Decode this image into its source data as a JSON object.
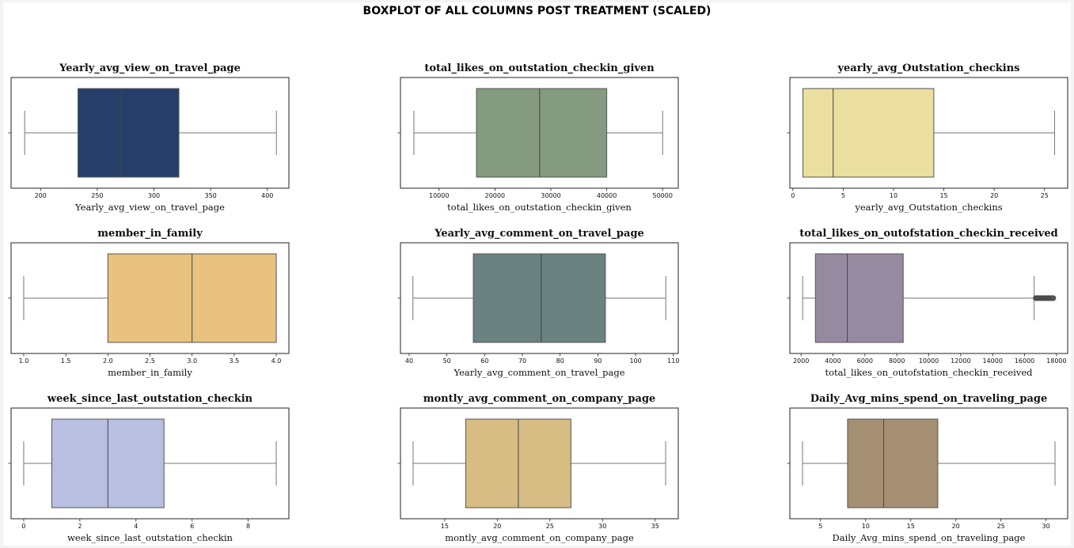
{
  "suptitle": "BOXPLOT OF ALL COLUMNS POST TREATMENT (SCALED)",
  "chart_data": [
    {
      "type": "boxplot",
      "title": "Yearly_avg_view_on_travel_page",
      "xlabel": "Yearly_avg_view_on_travel_page",
      "color": "#253f6a",
      "xlim": [
        174,
        419
      ],
      "ticks": [
        200,
        250,
        300,
        350,
        400
      ],
      "tick_labels": [
        "200",
        "250",
        "300",
        "350",
        "400"
      ],
      "whisker_low": 186,
      "q1": 233,
      "median": 271,
      "q3": 322,
      "whisker_high": 408
    },
    {
      "type": "boxplot",
      "title": "total_likes_on_outstation_checkin_given",
      "xlabel": "total_likes_on_outstation_checkin_given",
      "color": "#859b80",
      "xlim": [
        3100,
        52800
      ],
      "ticks": [
        10000,
        20000,
        30000,
        40000,
        50000
      ],
      "tick_labels": [
        "10000",
        "20000",
        "30000",
        "40000",
        "50000"
      ],
      "whisker_low": 5500,
      "q1": 16700,
      "median": 28000,
      "q3": 40000,
      "whisker_high": 50000
    },
    {
      "type": "boxplot",
      "title": "yearly_avg_Outstation_checkins",
      "xlabel": "yearly_avg_Outstation_checkins",
      "color": "#eadf9f",
      "xlim": [
        -0.3,
        27.3
      ],
      "ticks": [
        0,
        5,
        10,
        15,
        20,
        25
      ],
      "tick_labels": [
        "0",
        "5",
        "10",
        "15",
        "20",
        "25"
      ],
      "whisker_low": 1,
      "q1": 1,
      "median": 4,
      "q3": 14,
      "whisker_high": 26
    },
    {
      "type": "boxplot",
      "title": "member_in_family",
      "xlabel": "member_in_family",
      "color": "#e8c27e",
      "xlim": [
        0.85,
        4.15
      ],
      "ticks": [
        1.0,
        1.5,
        2.0,
        2.5,
        3.0,
        3.5,
        4.0
      ],
      "tick_labels": [
        "1.0",
        "1.5",
        "2.0",
        "2.5",
        "3.0",
        "3.5",
        "4.0"
      ],
      "whisker_low": 1,
      "q1": 2,
      "median": 3,
      "q3": 4,
      "whisker_high": 4
    },
    {
      "type": "boxplot",
      "title": "Yearly_avg_comment_on_travel_page",
      "xlabel": "Yearly_avg_comment_on_travel_page",
      "color": "#6a8280",
      "xlim": [
        37.7,
        111.3
      ],
      "ticks": [
        40,
        50,
        60,
        70,
        80,
        90,
        100,
        110
      ],
      "tick_labels": [
        "40",
        "50",
        "60",
        "70",
        "80",
        "90",
        "100",
        "110"
      ],
      "whisker_low": 41,
      "q1": 57,
      "median": 75,
      "q3": 92,
      "whisker_high": 108
    },
    {
      "type": "boxplot",
      "title": "total_likes_on_outofstation_checkin_received",
      "xlabel": "total_likes_on_outofstation_checkin_received",
      "color": "#968aa0",
      "xlim": [
        1300,
        18700
      ],
      "ticks": [
        2000,
        4000,
        6000,
        8000,
        10000,
        12000,
        14000,
        16000,
        18000
      ],
      "tick_labels": [
        "2000",
        "4000",
        "6000",
        "8000",
        "10000",
        "12000",
        "14000",
        "16000",
        "18000"
      ],
      "whisker_low": 2100,
      "q1": 2900,
      "median": 4900,
      "q3": 8400,
      "whisker_high": 16600,
      "outlier_range": [
        16700,
        17800
      ]
    },
    {
      "type": "boxplot",
      "title": "week_since_last_outstation_checkin",
      "xlabel": "week_since_last_outstation_checkin",
      "color": "#b8bfe0",
      "xlim": [
        -0.45,
        9.45
      ],
      "ticks": [
        0,
        2,
        4,
        6,
        8
      ],
      "tick_labels": [
        "0",
        "2",
        "4",
        "6",
        "8"
      ],
      "whisker_low": 0,
      "q1": 1,
      "median": 3,
      "q3": 5,
      "whisker_high": 9
    },
    {
      "type": "boxplot",
      "title": "montly_avg_comment_on_company_page",
      "xlabel": "montly_avg_comment_on_company_page",
      "color": "#d7bd84",
      "xlim": [
        10.8,
        37.2
      ],
      "ticks": [
        15,
        20,
        25,
        30,
        35
      ],
      "tick_labels": [
        "15",
        "20",
        "25",
        "30",
        "35"
      ],
      "whisker_low": 12,
      "q1": 17,
      "median": 22,
      "q3": 27,
      "whisker_high": 36
    },
    {
      "type": "boxplot",
      "title": "Daily_Avg_mins_spend_on_traveling_page",
      "xlabel": "Daily_Avg_mins_spend_on_traveling_page",
      "color": "#a58f73",
      "xlim": [
        1.6,
        32.4
      ],
      "ticks": [
        5,
        10,
        15,
        20,
        25,
        30
      ],
      "tick_labels": [
        "5",
        "10",
        "15",
        "20",
        "25",
        "30"
      ],
      "whisker_low": 3,
      "q1": 8,
      "median": 12,
      "q3": 18,
      "whisker_high": 31
    }
  ]
}
